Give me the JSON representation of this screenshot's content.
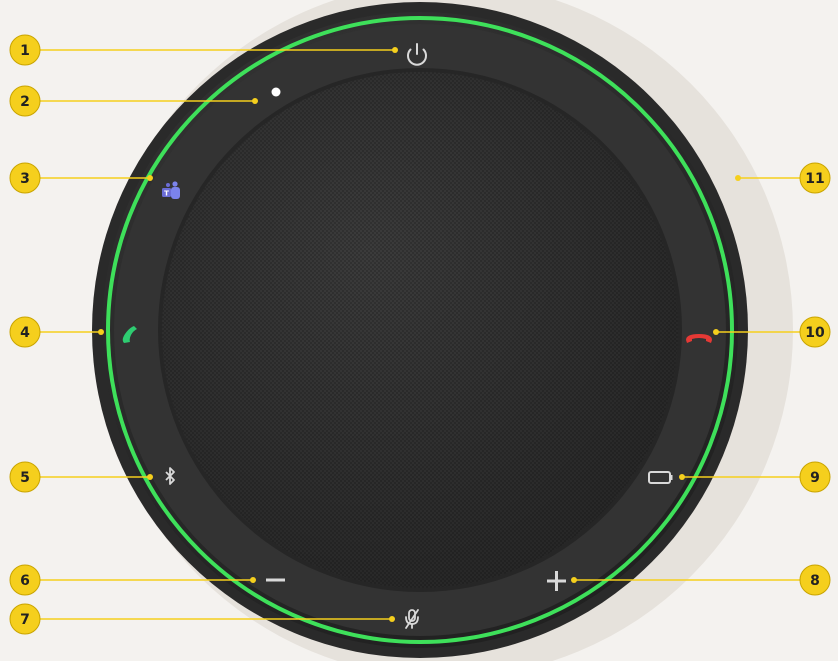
{
  "device": {
    "kind": "speakerphone",
    "ring_light_color": "#3ee05a",
    "mesh_color": "#3a3a3a",
    "body_color": "#2b2b2b",
    "buttons": [
      {
        "id": "power",
        "icon": "power-icon",
        "color": "#d9d9d9"
      },
      {
        "id": "status-led",
        "icon": "status-led-icon",
        "color": "#ffffff"
      },
      {
        "id": "teams",
        "icon": "microsoft-teams-icon",
        "color": "#6b6dd6"
      },
      {
        "id": "answer-call",
        "icon": "phone-answer-icon",
        "color": "#2ecc71"
      },
      {
        "id": "bluetooth",
        "icon": "bluetooth-icon",
        "color": "#d9d9d9"
      },
      {
        "id": "volume-down",
        "icon": "minus-icon",
        "color": "#d9d9d9"
      },
      {
        "id": "mute",
        "icon": "mic-mute-icon",
        "color": "#d9d9d9"
      },
      {
        "id": "volume-up",
        "icon": "plus-icon",
        "color": "#d9d9d9"
      },
      {
        "id": "battery",
        "icon": "battery-icon",
        "color": "#d9d9d9"
      },
      {
        "id": "end-call",
        "icon": "phone-hangup-icon",
        "color": "#e53935"
      },
      {
        "id": "ring-light",
        "icon": "light-ring-icon",
        "color": "#3ee05a"
      }
    ]
  },
  "callouts": [
    {
      "label": "1"
    },
    {
      "label": "2"
    },
    {
      "label": "3"
    },
    {
      "label": "4"
    },
    {
      "label": "5"
    },
    {
      "label": "6"
    },
    {
      "label": "7"
    },
    {
      "label": "8"
    },
    {
      "label": "9"
    },
    {
      "label": "10"
    },
    {
      "label": "11"
    }
  ],
  "callout_color": "#f5cf1d"
}
